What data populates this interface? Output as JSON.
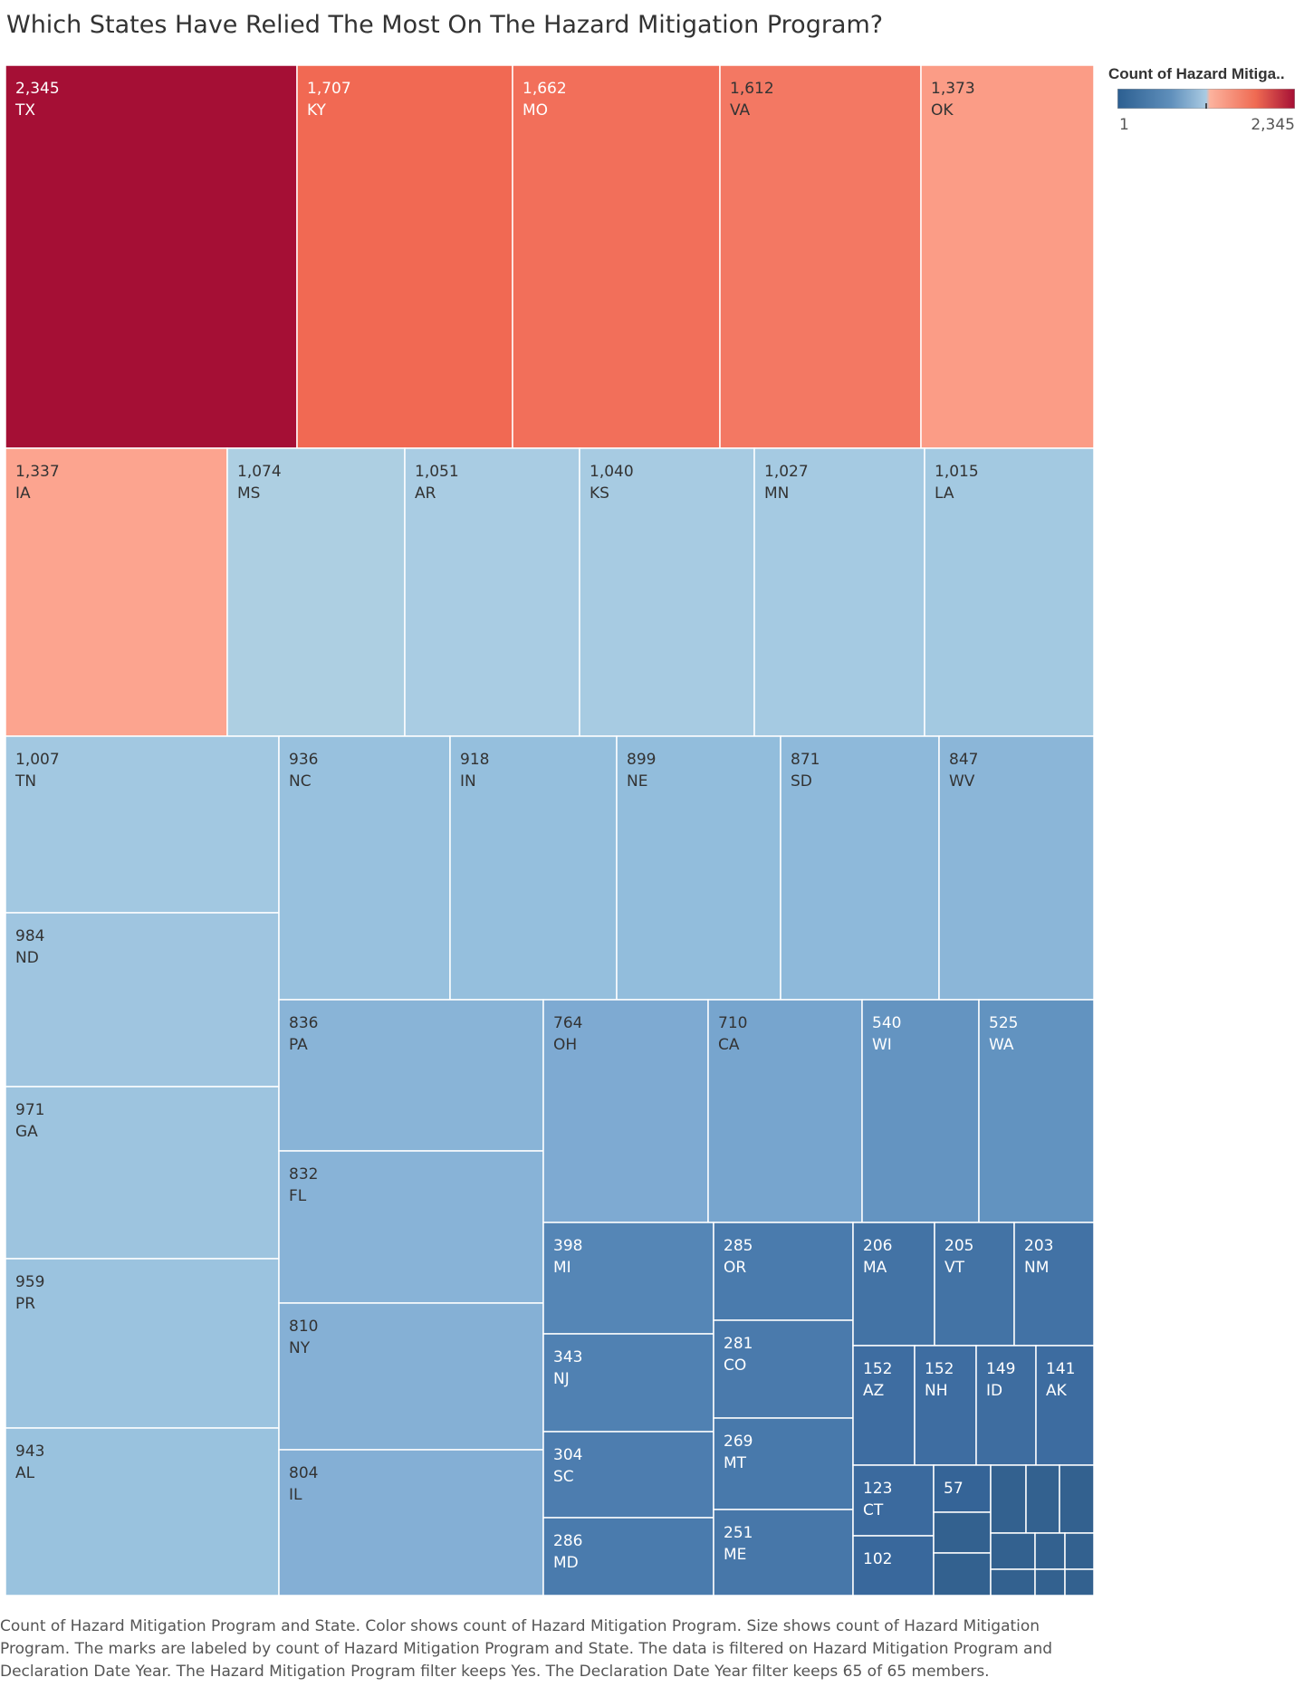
{
  "title": "Which States Have Relied The Most On The Hazard Mitigation Program?",
  "legend": {
    "title": "Count of Hazard Mitiga..",
    "min_label": "1",
    "max_label": "2,345",
    "colors": [
      "#2c5f91",
      "#5f8fbb",
      "#aacbe3",
      "#fcb39e",
      "#ef6a52",
      "#a50f35"
    ]
  },
  "caption": "Count of Hazard Mitigation Program and State.  Color shows count of Hazard Mitigation Program.  Size shows count of Hazard Mitigation Program.  The marks are labeled by count of Hazard Mitigation Program and State. The data is filtered on Hazard Mitigation Program and Declaration Date Year. The Hazard Mitigation Program filter keeps Yes. The Declaration Date Year filter keeps 65 of 65 members.",
  "chart_data": {
    "type": "treemap",
    "measure": "Count of Hazard Mitigation Program",
    "color_range": [
      1,
      2345
    ],
    "nodes": [
      {
        "label": "TX",
        "value": 2345,
        "value_label": "2,345",
        "color": "#a50f35"
      },
      {
        "label": "KY",
        "value": 1707,
        "value_label": "1,707",
        "color": "#f16953"
      },
      {
        "label": "MO",
        "value": 1662,
        "value_label": "1,662",
        "color": "#f26f5a"
      },
      {
        "label": "VA",
        "value": 1612,
        "value_label": "1,612",
        "color": "#f37863"
      },
      {
        "label": "OK",
        "value": 1373,
        "value_label": "1,373",
        "color": "#fb9c86"
      },
      {
        "label": "IA",
        "value": 1337,
        "value_label": "1,337",
        "color": "#fca48f"
      },
      {
        "label": "MS",
        "value": 1074,
        "value_label": "1,074",
        "color": "#adcfe2"
      },
      {
        "label": "AR",
        "value": 1051,
        "value_label": "1,051",
        "color": "#a9cce3"
      },
      {
        "label": "KS",
        "value": 1040,
        "value_label": "1,040",
        "color": "#a7cbe2"
      },
      {
        "label": "MN",
        "value": 1027,
        "value_label": "1,027",
        "color": "#a5cae2"
      },
      {
        "label": "LA",
        "value": 1015,
        "value_label": "1,015",
        "color": "#a3c9e1"
      },
      {
        "label": "TN",
        "value": 1007,
        "value_label": "1,007",
        "color": "#a2c8e1"
      },
      {
        "label": "ND",
        "value": 984,
        "value_label": "984",
        "color": "#9fc5e0"
      },
      {
        "label": "GA",
        "value": 971,
        "value_label": "971",
        "color": "#9dc4df"
      },
      {
        "label": "PR",
        "value": 959,
        "value_label": "959",
        "color": "#9bc3df"
      },
      {
        "label": "AL",
        "value": 943,
        "value_label": "943",
        "color": "#99c2de"
      },
      {
        "label": "NC",
        "value": 936,
        "value_label": "936",
        "color": "#98c1de"
      },
      {
        "label": "IN",
        "value": 918,
        "value_label": "918",
        "color": "#95bfdd"
      },
      {
        "label": "NE",
        "value": 899,
        "value_label": "899",
        "color": "#92bddc"
      },
      {
        "label": "SD",
        "value": 871,
        "value_label": "871",
        "color": "#8eb9da"
      },
      {
        "label": "WV",
        "value": 847,
        "value_label": "847",
        "color": "#8bb6d8"
      },
      {
        "label": "PA",
        "value": 836,
        "value_label": "836",
        "color": "#89b4d7"
      },
      {
        "label": "FL",
        "value": 832,
        "value_label": "832",
        "color": "#88b3d7"
      },
      {
        "label": "NY",
        "value": 810,
        "value_label": "810",
        "color": "#85b0d5"
      },
      {
        "label": "IL",
        "value": 804,
        "value_label": "804",
        "color": "#84afd5"
      },
      {
        "label": "OH",
        "value": 764,
        "value_label": "764",
        "color": "#7eaad2"
      },
      {
        "label": "CA",
        "value": 710,
        "value_label": "710",
        "color": "#77a5ce"
      },
      {
        "label": "WI",
        "value": 540,
        "value_label": "540",
        "color": "#6494c1"
      },
      {
        "label": "WA",
        "value": 525,
        "value_label": "525",
        "color": "#6293c0"
      },
      {
        "label": "MI",
        "value": 398,
        "value_label": "398",
        "color": "#5586b6"
      },
      {
        "label": "NJ",
        "value": 343,
        "value_label": "343",
        "color": "#5081b2"
      },
      {
        "label": "SC",
        "value": 304,
        "value_label": "304",
        "color": "#4d7daf"
      },
      {
        "label": "MD",
        "value": 286,
        "value_label": "286",
        "color": "#4a7bad"
      },
      {
        "label": "OR",
        "value": 285,
        "value_label": "285",
        "color": "#4a7bad"
      },
      {
        "label": "CO",
        "value": 281,
        "value_label": "281",
        "color": "#4a7aac"
      },
      {
        "label": "MT",
        "value": 269,
        "value_label": "269",
        "color": "#4879ab"
      },
      {
        "label": "ME",
        "value": 251,
        "value_label": "251",
        "color": "#4777a9"
      },
      {
        "label": "MA",
        "value": 206,
        "value_label": "206",
        "color": "#4373a5"
      },
      {
        "label": "VT",
        "value": 205,
        "value_label": "205",
        "color": "#4373a5"
      },
      {
        "label": "NM",
        "value": 203,
        "value_label": "203",
        "color": "#4272a5"
      },
      {
        "label": "AZ",
        "value": 152,
        "value_label": "152",
        "color": "#3e6da1"
      },
      {
        "label": "NH",
        "value": 152,
        "value_label": "152",
        "color": "#3e6da1"
      },
      {
        "label": "ID",
        "value": 149,
        "value_label": "149",
        "color": "#3e6da0"
      },
      {
        "label": "AK",
        "value": 141,
        "value_label": "141",
        "color": "#3d6ca0"
      },
      {
        "label": "CT",
        "value": 123,
        "value_label": "123",
        "color": "#3b6a9e"
      },
      {
        "label": "",
        "value": 102,
        "value_label": "102",
        "color": "#39689c"
      },
      {
        "label": "",
        "value": 57,
        "value_label": "57",
        "color": "#356497"
      }
    ],
    "unlabeled_small_marks": 10,
    "small_mark_color": "#33618f"
  }
}
